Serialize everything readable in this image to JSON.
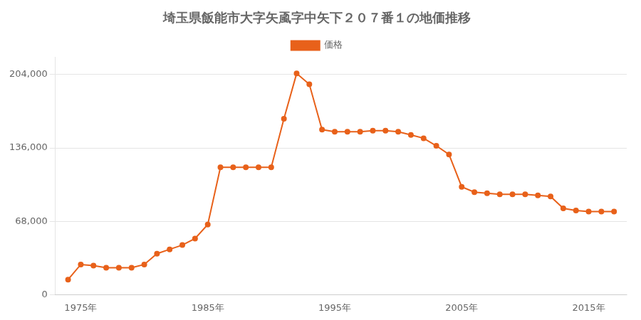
{
  "chart_data": {
    "type": "line",
    "title": "埼玉県飯能市大字矢颪字中矢下２０７番１の地価推移",
    "x": [
      1974,
      1975,
      1976,
      1977,
      1978,
      1979,
      1980,
      1981,
      1982,
      1983,
      1984,
      1985,
      1986,
      1987,
      1988,
      1989,
      1990,
      1991,
      1992,
      1993,
      1994,
      1995,
      1996,
      1997,
      1998,
      1999,
      2000,
      2001,
      2002,
      2003,
      2004,
      2005,
      2006,
      2007,
      2008,
      2009,
      2010,
      2011,
      2012,
      2013,
      2014,
      2015,
      2016,
      2017
    ],
    "series": [
      {
        "name": "価格",
        "color": "#e8611a",
        "marker": "circle",
        "values": [
          14000,
          28000,
          27000,
          25000,
          25000,
          25000,
          28000,
          38000,
          42000,
          46000,
          52000,
          65000,
          118000,
          118000,
          118000,
          118000,
          118000,
          163000,
          205000,
          195000,
          153000,
          151000,
          151000,
          151000,
          152000,
          152000,
          151000,
          148000,
          145000,
          138000,
          130000,
          100000,
          95000,
          94000,
          93000,
          93000,
          93000,
          92000,
          91000,
          80000,
          78000,
          77000,
          77000,
          77000
        ]
      }
    ],
    "xlim": [
      1973,
      2018
    ],
    "xticks": [
      {
        "value": 1975,
        "label": "1975年"
      },
      {
        "value": 1985,
        "label": "1985年"
      },
      {
        "value": 1995,
        "label": "1995年"
      },
      {
        "value": 2005,
        "label": "2005年"
      },
      {
        "value": 2015,
        "label": "2015年"
      }
    ],
    "ylim": [
      0,
      220000
    ],
    "yticks": [
      0,
      {
        "value": 68000,
        "label": "68,000"
      },
      {
        "value": 136000,
        "label": "136,000"
      },
      {
        "value": 204000,
        "label": "204,000"
      }
    ],
    "grid": "y",
    "legend": "top"
  }
}
